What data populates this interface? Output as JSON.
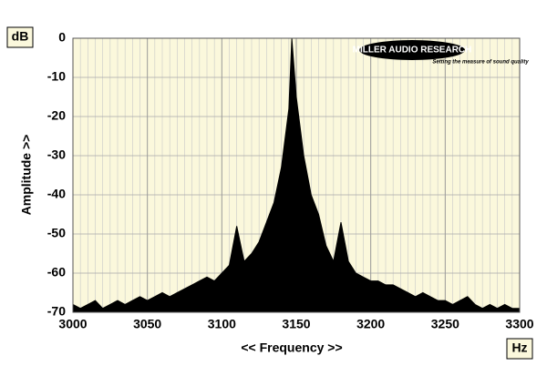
{
  "chart_data": {
    "type": "area",
    "x_label": "<< Frequency >>",
    "y_label": "Amplitude >>",
    "y_unit": "dB",
    "x_unit": "Hz",
    "annotations": [
      "MILLER AUDIO RESEARCH",
      "Setting the measure of sound quality"
    ],
    "x": [
      3000,
      3005,
      3010,
      3015,
      3020,
      3025,
      3030,
      3035,
      3040,
      3045,
      3050,
      3055,
      3060,
      3065,
      3070,
      3075,
      3080,
      3085,
      3090,
      3095,
      3100,
      3105,
      3110,
      3115,
      3120,
      3125,
      3130,
      3135,
      3140,
      3145,
      3147,
      3150,
      3155,
      3160,
      3165,
      3170,
      3175,
      3180,
      3185,
      3190,
      3195,
      3200,
      3205,
      3210,
      3215,
      3220,
      3225,
      3230,
      3235,
      3240,
      3245,
      3250,
      3255,
      3260,
      3265,
      3270,
      3275,
      3280,
      3285,
      3290,
      3295,
      3300
    ],
    "values": [
      -68,
      -69,
      -68,
      -67,
      -69,
      -68,
      -67,
      -68,
      -67,
      -66,
      -67,
      -66,
      -65,
      -66,
      -65,
      -64,
      -63,
      -62,
      -61,
      -62,
      -60,
      -58,
      -48,
      -57,
      -55,
      -52,
      -47,
      -42,
      -33,
      -18,
      0,
      -15,
      -30,
      -40,
      -45,
      -53,
      -57,
      -47,
      -57,
      -60,
      -61,
      -62,
      -62,
      -63,
      -63,
      -64,
      -65,
      -66,
      -65,
      -66,
      -67,
      -67,
      -68,
      -67,
      -66,
      -68,
      -69,
      -68,
      -69,
      -68,
      -69,
      -69
    ],
    "color": "#000000",
    "xlim": [
      3000,
      3300
    ],
    "xticks": [
      3000,
      3050,
      3100,
      3150,
      3200,
      3250,
      3300
    ],
    "ylim": [
      -70,
      0
    ],
    "yticks": [
      0,
      -10,
      -20,
      -30,
      -40,
      -50,
      -60,
      -70
    ],
    "grid": true
  }
}
